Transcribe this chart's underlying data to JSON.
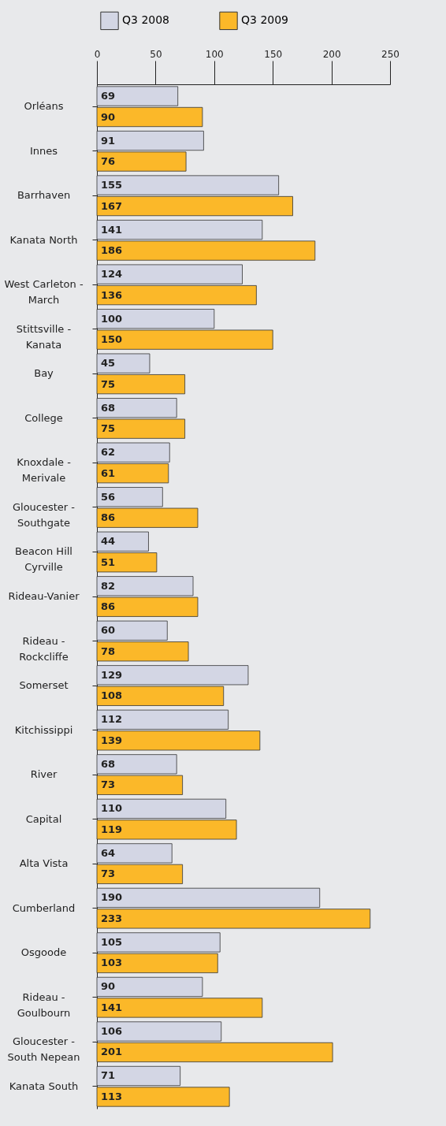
{
  "chart_data": {
    "type": "bar",
    "orientation": "horizontal",
    "categories": [
      "Orléans",
      "Innes",
      "Barrhaven",
      "Kanata North",
      "West Carleton - March",
      "Stittsville - Kanata",
      "Bay",
      "College",
      "Knoxdale - Merivale",
      "Gloucester - Southgate",
      "Beacon Hill Cyrville",
      "Rideau-Vanier",
      "Rideau - Rockcliffe",
      "Somerset",
      "Kitchissippi",
      "River",
      "Capital",
      "Alta Vista",
      "Cumberland",
      "Osgoode",
      "Rideau - Goulbourn",
      "Gloucester - South Nepean",
      "Kanata South"
    ],
    "series": [
      {
        "name": "Q3 2008",
        "color": "#d3d6e4",
        "values": [
          69,
          91,
          155,
          141,
          124,
          100,
          45,
          68,
          62,
          56,
          44,
          82,
          60,
          129,
          112,
          68,
          110,
          64,
          190,
          105,
          90,
          106,
          71
        ]
      },
      {
        "name": "Q3 2009",
        "color": "#fbb829",
        "values": [
          90,
          76,
          167,
          186,
          136,
          150,
          75,
          75,
          61,
          86,
          51,
          86,
          78,
          108,
          139,
          73,
          119,
          73,
          233,
          103,
          141,
          201,
          113
        ]
      }
    ],
    "xlim": [
      0,
      250
    ],
    "xticks": [
      0,
      50,
      100,
      150,
      200,
      250
    ],
    "data_labels": true,
    "legend": "top",
    "grid": false
  }
}
